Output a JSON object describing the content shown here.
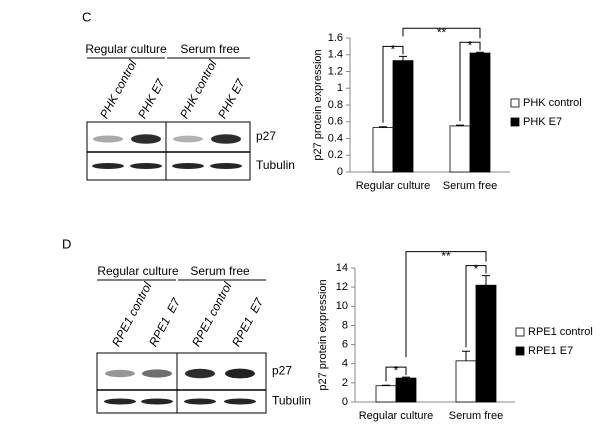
{
  "chart_data": [
    {
      "type": "bar",
      "panel": "C",
      "ylabel": "p27 protein expression",
      "categories": [
        "Regular culture",
        "Serum free"
      ],
      "series": [
        {
          "name": "PHK control",
          "color": "#ffffff",
          "values": [
            0.53,
            0.55
          ],
          "errors": [
            0.01,
            0.01
          ]
        },
        {
          "name": "PHK E7",
          "color": "#000000",
          "values": [
            1.33,
            1.42
          ],
          "errors": [
            0.05,
            0.01
          ]
        }
      ],
      "ylim": [
        0,
        1.6
      ],
      "yticks": [
        0,
        0.2,
        0.4,
        0.6,
        0.8,
        1,
        1.2,
        1.4,
        1.6
      ],
      "significance": {
        "within": [
          "*",
          "*"
        ],
        "between": "**"
      },
      "legend": "right"
    },
    {
      "type": "bar",
      "panel": "D",
      "ylabel": "p27 protein expression",
      "categories": [
        "Regular culture",
        "Serum free"
      ],
      "series": [
        {
          "name": "RPE1 control",
          "color": "#ffffff",
          "values": [
            1.7,
            4.3
          ],
          "errors": [
            0.05,
            1.0
          ]
        },
        {
          "name": "RPE1 E7",
          "color": "#000000",
          "values": [
            2.5,
            12.2
          ],
          "errors": [
            0.1,
            1.0
          ]
        }
      ],
      "ylim": [
        0,
        14
      ],
      "yticks": [
        0,
        2,
        4,
        6,
        8,
        10,
        12,
        14
      ],
      "significance": {
        "within": [
          "*",
          "*"
        ],
        "between": "**"
      },
      "legend": "right"
    }
  ],
  "blots": [
    {
      "groups": [
        "Regular culture",
        "Serum free"
      ],
      "lanes": [
        "PHK control",
        "PHK E7",
        "PHK control",
        "PHK E7"
      ],
      "rows": [
        "p27",
        "Tubulin"
      ]
    },
    {
      "groups": [
        "Regular culture",
        "Serum free"
      ],
      "lanes": [
        "RPE1 control",
        "RPE1  E7",
        "RPE1 control",
        "RPE1  E7"
      ],
      "rows": [
        "p27",
        "Tubulin"
      ]
    }
  ]
}
